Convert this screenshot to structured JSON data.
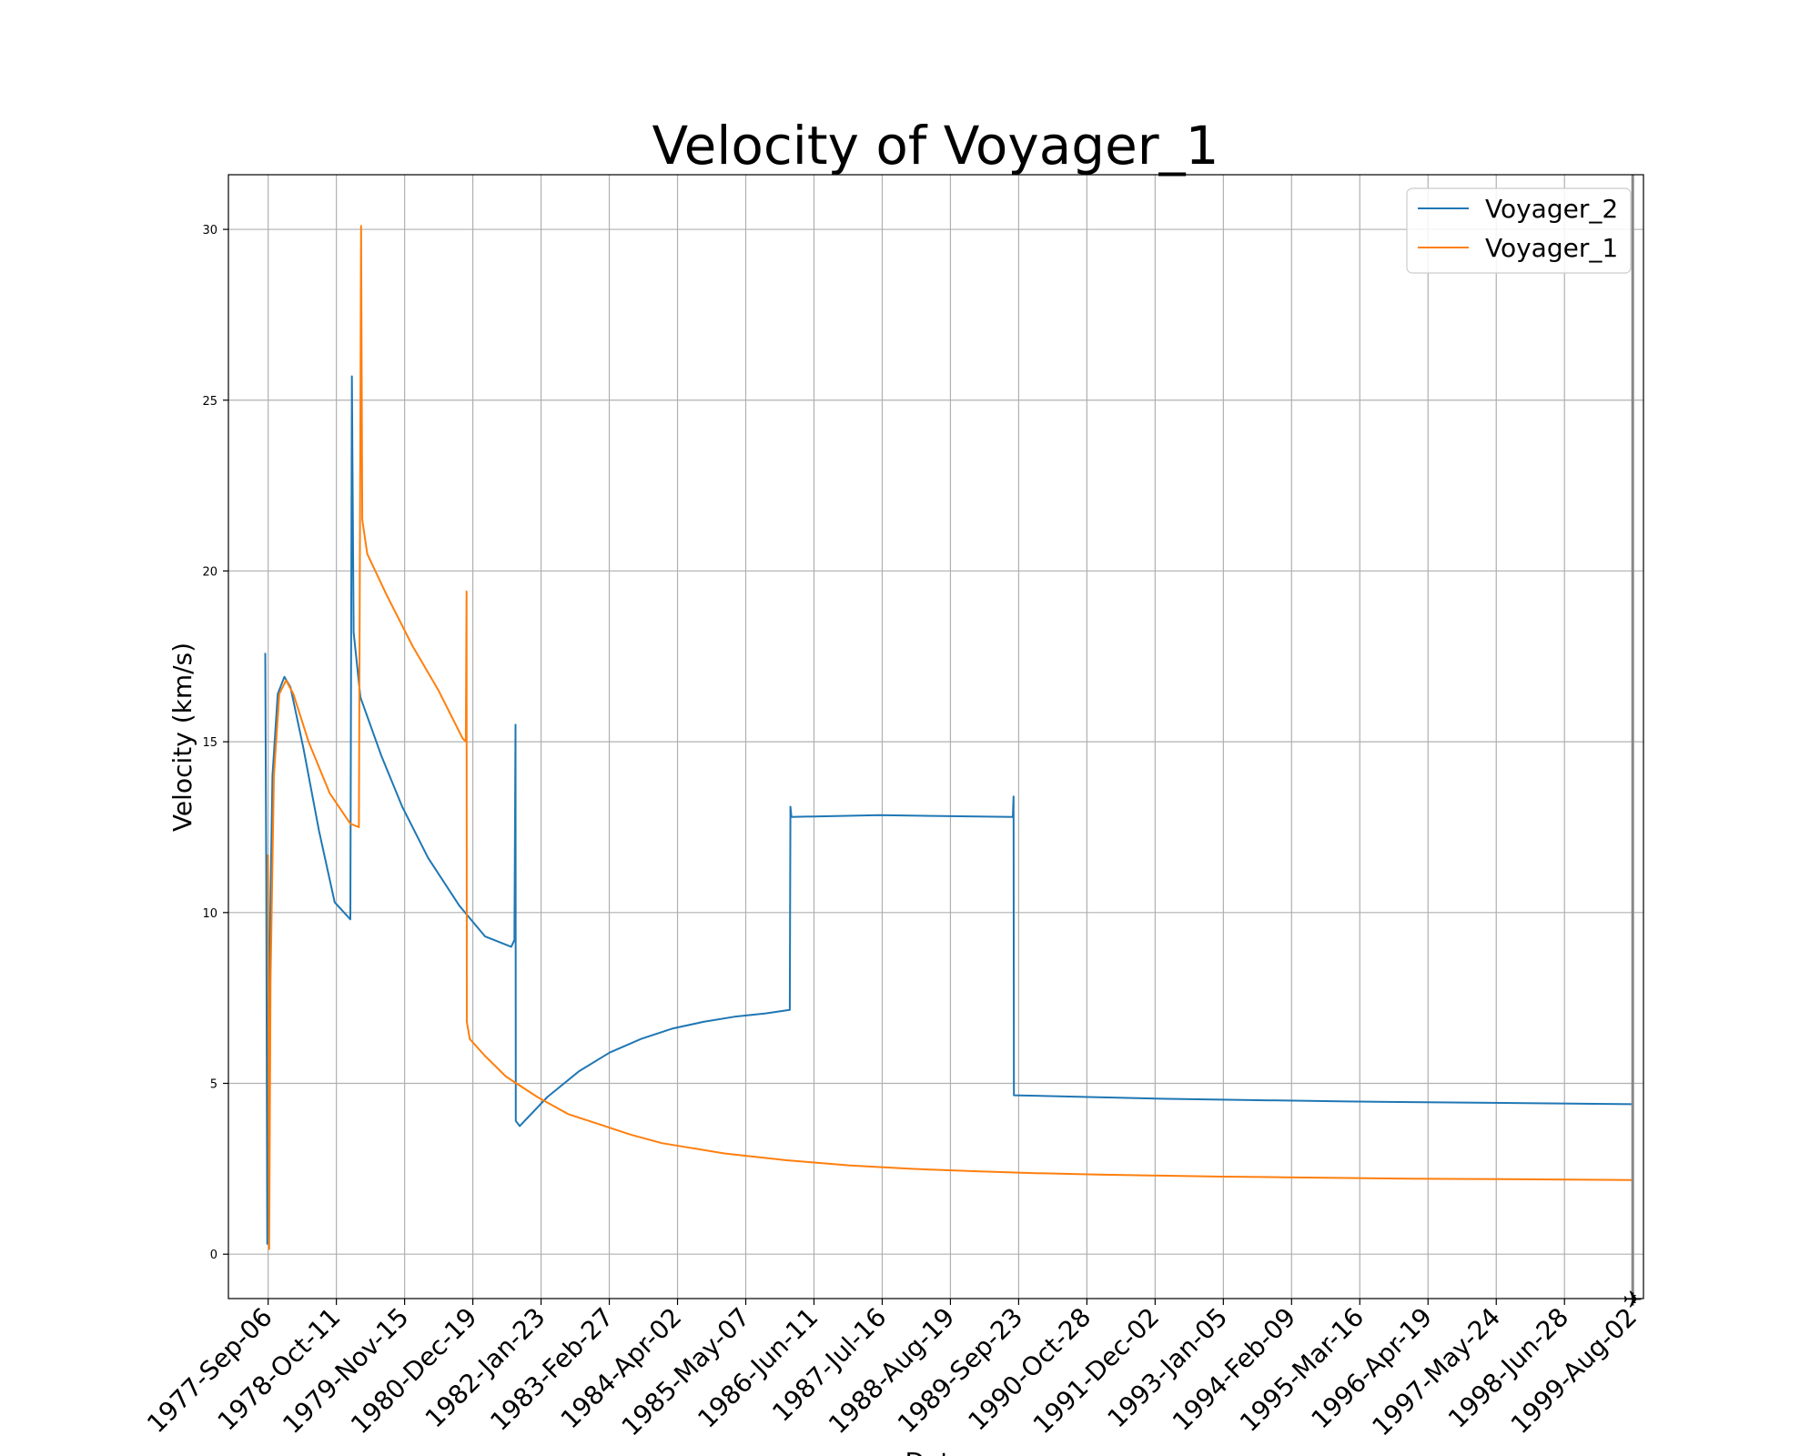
{
  "chart_data": {
    "type": "line",
    "title": "Velocity of Voyager_1",
    "xlabel": "Date",
    "ylabel": "Velocity (km/s)",
    "ylim": [
      -1.3,
      31.6
    ],
    "xlim": [
      "1977-Jan-16",
      "1999-Oct-04"
    ],
    "grid": true,
    "legend_position": "top-right",
    "yticks": [
      0,
      5,
      10,
      15,
      20,
      25,
      30
    ],
    "xticks": [
      "1977-Sep-06",
      "1978-Oct-11",
      "1979-Nov-15",
      "1980-Dec-19",
      "1982-Jan-23",
      "1983-Feb-27",
      "1984-Apr-02",
      "1985-May-07",
      "1986-Jun-11",
      "1987-Jul-16",
      "1988-Aug-19",
      "1989-Sep-23",
      "1990-Oct-28",
      "1991-Dec-02",
      "1993-Jan-05",
      "1994-Feb-09",
      "1995-Mar-16",
      "1996-Apr-19",
      "1997-May-24",
      "1998-Jun-28",
      "1999-Aug-02"
    ],
    "end_marker": {
      "x": "1999-Aug-02",
      "symbol": "✈"
    },
    "series": [
      {
        "name": "Voyager_2",
        "color": "#1f77b4",
        "points": [
          [
            "1977-Aug-20",
            17.6
          ],
          [
            "1977-Aug-26",
            11.0
          ],
          [
            "1977-Sep-01",
            0.3
          ],
          [
            "1977-Sep-12",
            8.0
          ],
          [
            "1977-Oct-01",
            14.0
          ],
          [
            "1977-Nov-01",
            16.4
          ],
          [
            "1977-Dec-10",
            16.9
          ],
          [
            "1978-Jan-15",
            16.6
          ],
          [
            "1978-Apr-01",
            14.8
          ],
          [
            "1978-Jul-01",
            12.4
          ],
          [
            "1978-Oct-01",
            10.3
          ],
          [
            "1979-Jan-01",
            9.8
          ],
          [
            "1979-Jan-10",
            25.7
          ],
          [
            "1979-Jan-20",
            18.2
          ],
          [
            "1979-Mar-01",
            16.3
          ],
          [
            "1979-Jul-01",
            14.6
          ],
          [
            "1979-Nov-01",
            13.1
          ],
          [
            "1980-Apr-01",
            11.6
          ],
          [
            "1980-Oct-01",
            10.2
          ],
          [
            "1981-Mar-01",
            9.3
          ],
          [
            "1981-Aug-01",
            9.0
          ],
          [
            "1981-Aug-20",
            9.2
          ],
          [
            "1981-Aug-26",
            15.5
          ],
          [
            "1981-Aug-28",
            3.9
          ],
          [
            "1981-Sep-20",
            3.75
          ],
          [
            "1982-Mar-01",
            4.6
          ],
          [
            "1982-Sep-01",
            5.35
          ],
          [
            "1983-Mar-01",
            5.9
          ],
          [
            "1983-Sep-01",
            6.3
          ],
          [
            "1984-Mar-01",
            6.6
          ],
          [
            "1984-Sep-01",
            6.8
          ],
          [
            "1985-Mar-01",
            6.95
          ],
          [
            "1985-Sep-01",
            7.05
          ],
          [
            "1986-Jan-20",
            7.15
          ],
          [
            "1986-Jan-24",
            13.1
          ],
          [
            "1986-Jan-30",
            12.8
          ],
          [
            "1987-Jul-01",
            12.85
          ],
          [
            "1989-Aug-20",
            12.8
          ],
          [
            "1989-Aug-24",
            13.4
          ],
          [
            "1989-Aug-26",
            4.65
          ],
          [
            "1992-Jan-01",
            4.55
          ],
          [
            "1995-Jan-01",
            4.47
          ],
          [
            "1999-Aug-02",
            4.39
          ]
        ]
      },
      {
        "name": "Voyager_1",
        "color": "#ff7f0e",
        "points": [
          [
            "1977-Sep-05",
            11.7
          ],
          [
            "1977-Sep-08",
            7.0
          ],
          [
            "1977-Sep-12",
            0.15
          ],
          [
            "1977-Sep-20",
            8.0
          ],
          [
            "1977-Oct-10",
            14.0
          ],
          [
            "1977-Nov-10",
            16.4
          ],
          [
            "1977-Dec-20",
            16.8
          ],
          [
            "1978-Feb-01",
            16.4
          ],
          [
            "1978-May-01",
            15.0
          ],
          [
            "1978-Sep-01",
            13.5
          ],
          [
            "1979-Jan-01",
            12.6
          ],
          [
            "1979-Feb-20",
            12.5
          ],
          [
            "1979-Mar-05",
            30.1
          ],
          [
            "1979-Mar-12",
            21.5
          ],
          [
            "1979-Apr-10",
            20.5
          ],
          [
            "1979-Aug-01",
            19.3
          ],
          [
            "1980-Jan-01",
            17.8
          ],
          [
            "1980-Jun-01",
            16.5
          ],
          [
            "1980-Oct-20",
            15.1
          ],
          [
            "1980-Nov-08",
            15.0
          ],
          [
            "1980-Nov-12",
            19.4
          ],
          [
            "1980-Nov-14",
            6.8
          ],
          [
            "1980-Dec-01",
            6.3
          ],
          [
            "1981-Mar-01",
            5.8
          ],
          [
            "1981-Jul-01",
            5.2
          ],
          [
            "1982-Jan-01",
            4.6
          ],
          [
            "1982-Jul-01",
            4.1
          ],
          [
            "1983-Jan-01",
            3.8
          ],
          [
            "1983-Jul-01",
            3.5
          ],
          [
            "1984-Jan-01",
            3.25
          ],
          [
            "1984-Jul-01",
            3.1
          ],
          [
            "1985-Jan-01",
            2.95
          ],
          [
            "1986-Jan-01",
            2.75
          ],
          [
            "1987-Jan-01",
            2.6
          ],
          [
            "1988-Jan-01",
            2.5
          ],
          [
            "1989-Jan-01",
            2.43
          ],
          [
            "1990-Jan-01",
            2.37
          ],
          [
            "1991-Jan-01",
            2.33
          ],
          [
            "1992-Jan-01",
            2.3
          ],
          [
            "1993-Jan-01",
            2.27
          ],
          [
            "1994-Jan-01",
            2.25
          ],
          [
            "1995-Jan-01",
            2.23
          ],
          [
            "1996-Jan-01",
            2.21
          ],
          [
            "1997-Jan-01",
            2.2
          ],
          [
            "1998-Jan-01",
            2.19
          ],
          [
            "1999-Aug-02",
            2.17
          ]
        ]
      }
    ]
  }
}
